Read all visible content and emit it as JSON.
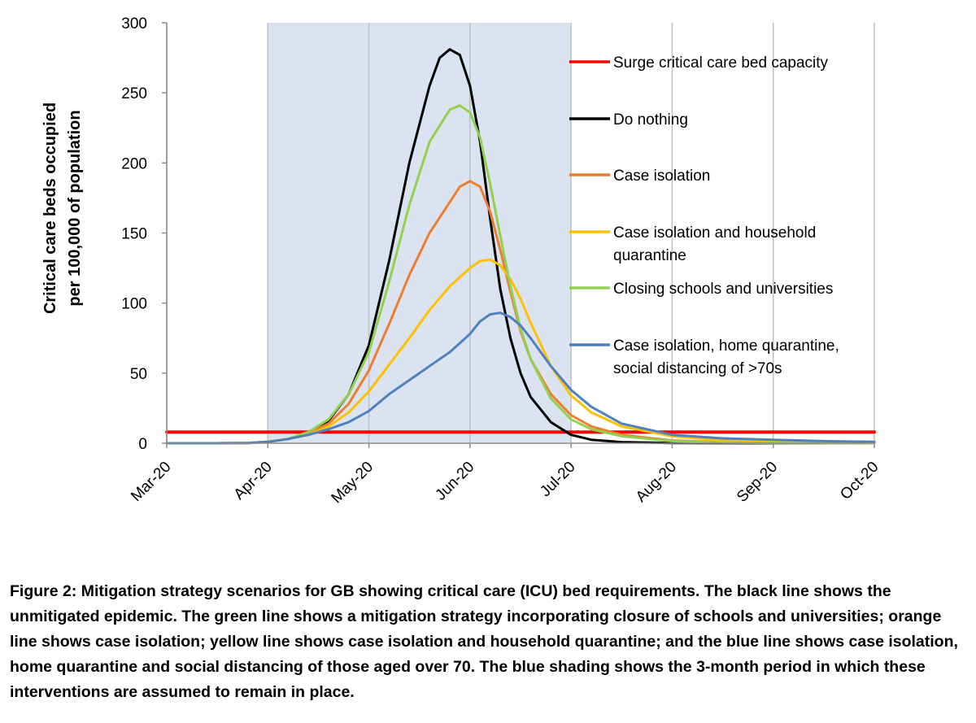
{
  "chart_data": {
    "type": "line",
    "ylabel": [
      "Critical care beds occupied",
      "per 100,000 of population"
    ],
    "xlabel": "",
    "x_ticks": [
      "Mar-20",
      "Apr-20",
      "May-20",
      "Jun-20",
      "Jul-20",
      "Aug-20",
      "Sep-20",
      "Oct-20"
    ],
    "ylim": [
      0,
      300
    ],
    "y_ticks": [
      0,
      50,
      100,
      150,
      200,
      250,
      300
    ],
    "grid": "vertical lines at month ticks",
    "shading": {
      "from": "Apr-20",
      "to": "Jul-20",
      "color": "#dbe3f1"
    },
    "x_unit": "months since Mar-20",
    "series": [
      {
        "name": "Surge critical care bed capacity",
        "color": "#ff0000",
        "width": 4,
        "points": [
          [
            0,
            8
          ],
          [
            7,
            8
          ]
        ]
      },
      {
        "name": "Do nothing",
        "color": "#000000",
        "width": 3,
        "points": [
          [
            0,
            0
          ],
          [
            0.5,
            0
          ],
          [
            0.8,
            0.2
          ],
          [
            1.0,
            1
          ],
          [
            1.2,
            3
          ],
          [
            1.4,
            7
          ],
          [
            1.6,
            16
          ],
          [
            1.8,
            35
          ],
          [
            2.0,
            70
          ],
          [
            2.2,
            130
          ],
          [
            2.4,
            200
          ],
          [
            2.6,
            255
          ],
          [
            2.7,
            275
          ],
          [
            2.8,
            281
          ],
          [
            2.9,
            277
          ],
          [
            3.0,
            255
          ],
          [
            3.1,
            215
          ],
          [
            3.2,
            160
          ],
          [
            3.3,
            110
          ],
          [
            3.4,
            75
          ],
          [
            3.5,
            50
          ],
          [
            3.6,
            33
          ],
          [
            3.8,
            15
          ],
          [
            4.0,
            6
          ],
          [
            4.2,
            2.5
          ],
          [
            4.5,
            0.8
          ],
          [
            5.0,
            0.2
          ],
          [
            6.0,
            0
          ],
          [
            7.0,
            0
          ]
        ]
      },
      {
        "name": "Case isolation",
        "color": "#ed7d31",
        "width": 3,
        "points": [
          [
            0,
            0
          ],
          [
            0.5,
            0
          ],
          [
            0.8,
            0.2
          ],
          [
            1.0,
            1
          ],
          [
            1.2,
            3
          ],
          [
            1.4,
            7
          ],
          [
            1.6,
            14
          ],
          [
            1.8,
            28
          ],
          [
            2.0,
            52
          ],
          [
            2.2,
            85
          ],
          [
            2.4,
            120
          ],
          [
            2.6,
            150
          ],
          [
            2.8,
            172
          ],
          [
            2.9,
            183
          ],
          [
            3.0,
            187
          ],
          [
            3.1,
            183
          ],
          [
            3.2,
            165
          ],
          [
            3.3,
            138
          ],
          [
            3.4,
            108
          ],
          [
            3.5,
            80
          ],
          [
            3.6,
            60
          ],
          [
            3.8,
            35
          ],
          [
            4.0,
            20
          ],
          [
            4.2,
            12
          ],
          [
            4.5,
            6
          ],
          [
            5.0,
            2
          ],
          [
            5.5,
            0.7
          ],
          [
            6.0,
            0.3
          ],
          [
            7.0,
            0
          ]
        ]
      },
      {
        "name": "Case isolation and household quarantine",
        "color": "#ffc000",
        "width": 3,
        "points": [
          [
            0,
            0
          ],
          [
            0.5,
            0
          ],
          [
            0.8,
            0.2
          ],
          [
            1.0,
            1
          ],
          [
            1.2,
            3
          ],
          [
            1.4,
            6
          ],
          [
            1.6,
            12
          ],
          [
            1.8,
            22
          ],
          [
            2.0,
            37
          ],
          [
            2.2,
            56
          ],
          [
            2.4,
            75
          ],
          [
            2.6,
            95
          ],
          [
            2.8,
            112
          ],
          [
            3.0,
            125
          ],
          [
            3.1,
            130
          ],
          [
            3.2,
            131
          ],
          [
            3.3,
            127
          ],
          [
            3.4,
            117
          ],
          [
            3.5,
            103
          ],
          [
            3.6,
            86
          ],
          [
            3.8,
            55
          ],
          [
            4.0,
            34
          ],
          [
            4.2,
            22
          ],
          [
            4.5,
            12
          ],
          [
            5.0,
            5
          ],
          [
            5.5,
            2
          ],
          [
            6.0,
            1
          ],
          [
            7.0,
            0.2
          ]
        ]
      },
      {
        "name": "Closing schools and universities",
        "color": "#92d050",
        "width": 3,
        "points": [
          [
            0,
            0
          ],
          [
            0.5,
            0
          ],
          [
            0.8,
            0.2
          ],
          [
            1.0,
            1
          ],
          [
            1.2,
            3
          ],
          [
            1.4,
            8
          ],
          [
            1.6,
            17
          ],
          [
            1.8,
            35
          ],
          [
            2.0,
            65
          ],
          [
            2.2,
            115
          ],
          [
            2.4,
            170
          ],
          [
            2.6,
            215
          ],
          [
            2.8,
            238
          ],
          [
            2.9,
            241
          ],
          [
            3.0,
            236
          ],
          [
            3.1,
            218
          ],
          [
            3.2,
            185
          ],
          [
            3.3,
            148
          ],
          [
            3.4,
            112
          ],
          [
            3.5,
            82
          ],
          [
            3.6,
            60
          ],
          [
            3.8,
            32
          ],
          [
            4.0,
            17
          ],
          [
            4.2,
            10
          ],
          [
            4.5,
            5
          ],
          [
            5.0,
            1.5
          ],
          [
            5.5,
            0.5
          ],
          [
            6.0,
            0.2
          ],
          [
            7.0,
            0
          ]
        ]
      },
      {
        "name": "Case isolation, home quarantine, social distancing of >70s",
        "color": "#4f81bd",
        "width": 3,
        "points": [
          [
            0,
            0
          ],
          [
            0.5,
            0
          ],
          [
            0.8,
            0.2
          ],
          [
            1.0,
            1
          ],
          [
            1.2,
            3
          ],
          [
            1.4,
            6
          ],
          [
            1.6,
            10
          ],
          [
            1.8,
            15
          ],
          [
            2.0,
            23
          ],
          [
            2.2,
            35
          ],
          [
            2.4,
            45
          ],
          [
            2.6,
            55
          ],
          [
            2.8,
            65
          ],
          [
            3.0,
            78
          ],
          [
            3.1,
            87
          ],
          [
            3.2,
            92
          ],
          [
            3.3,
            93
          ],
          [
            3.4,
            90
          ],
          [
            3.5,
            84
          ],
          [
            3.6,
            75
          ],
          [
            3.8,
            55
          ],
          [
            4.0,
            38
          ],
          [
            4.2,
            26
          ],
          [
            4.5,
            14
          ],
          [
            5.0,
            6
          ],
          [
            5.5,
            3.5
          ],
          [
            6.0,
            2.5
          ],
          [
            6.5,
            1.5
          ],
          [
            7.0,
            1
          ]
        ]
      }
    ],
    "legend": [
      {
        "label": [
          "Surge critical care bed capacity"
        ],
        "color": "#ff0000"
      },
      {
        "label": [
          "Do nothing"
        ],
        "color": "#000000"
      },
      {
        "label": [
          "Case isolation"
        ],
        "color": "#ed7d31"
      },
      {
        "label": [
          "Case isolation and household",
          "quarantine"
        ],
        "color": "#ffc000"
      },
      {
        "label": [
          "Closing schools and universities"
        ],
        "color": "#92d050"
      },
      {
        "label": [
          "Case isolation, home quarantine,",
          "social distancing of >70s"
        ],
        "color": "#4f81bd"
      }
    ],
    "legend_placement": "right, inside plot"
  },
  "caption": "Figure 2: Mitigation strategy scenarios for GB showing critical care (ICU) bed requirements. The black line shows the unmitigated epidemic. The green line shows a mitigation strategy incorporating closure of schools and universities; orange line shows case isolation; yellow line shows case isolation and household quarantine; and the blue line shows case isolation, home quarantine and social distancing of those aged over 70. The blue shading shows the 3-month period in which these interventions are assumed to remain in place."
}
